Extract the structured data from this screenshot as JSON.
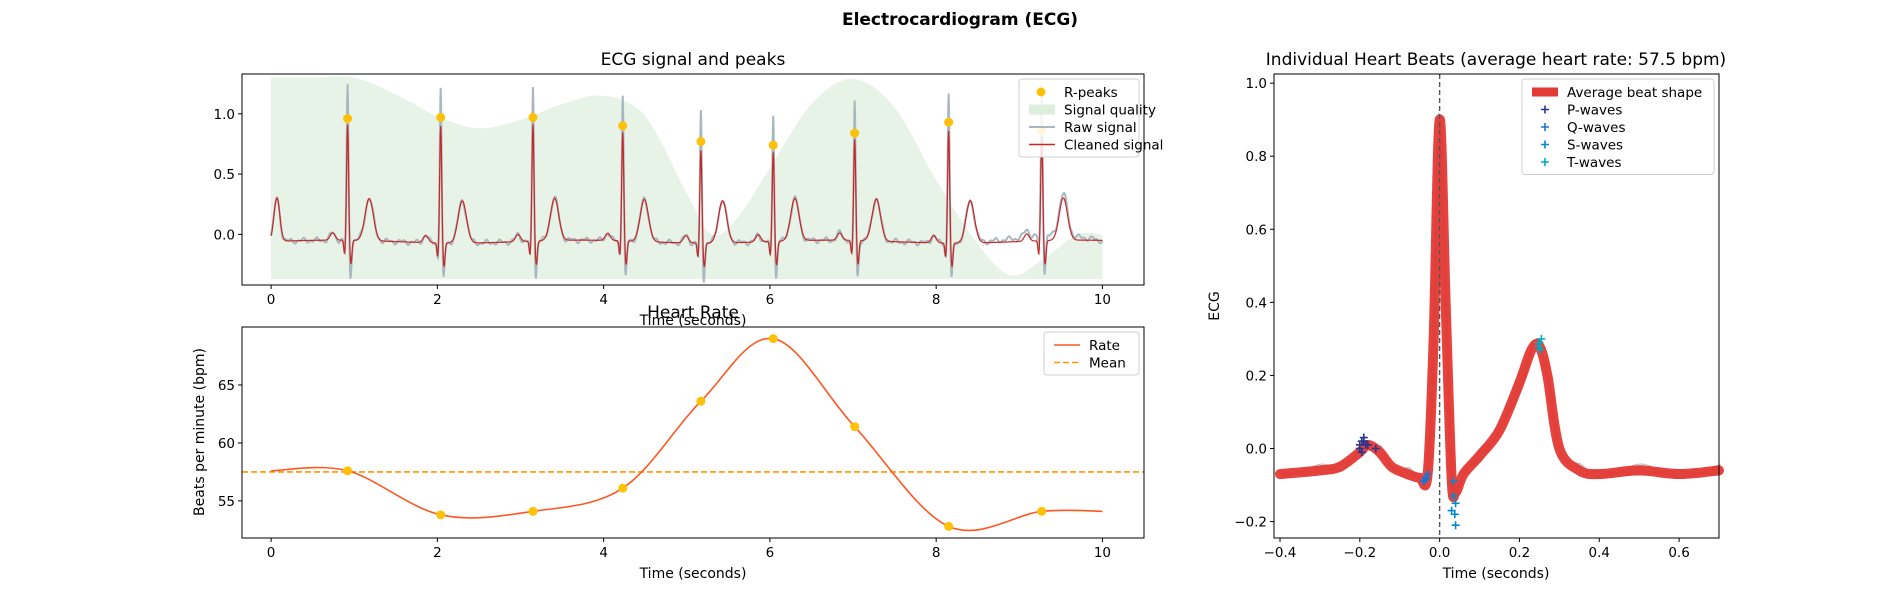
{
  "figure": {
    "title": "Electrocardiogram (ECG)",
    "colors": {
      "raw": "#a9b7c0",
      "cleaned": "#c62828",
      "peaks": "#ffc107",
      "quality": "#ddeedd",
      "rate": "#ff5722",
      "mean": "#ff9800",
      "avg_beat": "#e53935",
      "individual": "#9e9e9e",
      "p_waves": "#283593",
      "q_waves": "#1976d2",
      "s_waves": "#0288d1",
      "t_waves": "#00acc1"
    }
  },
  "chart_data": [
    {
      "id": "ecg_signal",
      "type": "line",
      "title": "ECG signal and peaks",
      "xlabel": "Time (seconds)",
      "ylabel": "",
      "xlim": [
        -0.35,
        10.5
      ],
      "ylim": [
        -0.42,
        1.33
      ],
      "xticks": [
        0,
        2,
        4,
        6,
        8,
        10
      ],
      "xtick_labels": [
        "0",
        "2",
        "4",
        "6",
        "8",
        "10"
      ],
      "yticks": [
        0.0,
        0.5,
        1.0
      ],
      "ytick_labels": [
        "0.0",
        "0.5",
        "1.0"
      ],
      "legend_position": "top-right",
      "legend": [
        "R-peaks",
        "Signal quality",
        "Raw signal",
        "Cleaned signal"
      ],
      "r_peaks": {
        "name": "R-peaks",
        "x": [
          0.92,
          2.04,
          3.15,
          4.23,
          5.17,
          6.04,
          7.02,
          8.15,
          9.27
        ],
        "y": [
          0.96,
          0.97,
          0.97,
          0.9,
          0.77,
          0.74,
          0.84,
          0.93,
          0.86
        ]
      },
      "signal_quality": {
        "name": "Signal quality",
        "x": [
          0,
          0.5,
          1.0,
          1.5,
          2.0,
          2.5,
          3.0,
          3.5,
          4.0,
          4.5,
          5.0,
          5.3,
          5.6,
          6.0,
          6.5,
          7.0,
          7.5,
          8.0,
          8.5,
          8.9,
          9.3,
          9.7,
          10.0
        ],
        "y": [
          1.3,
          1.3,
          1.3,
          1.16,
          0.98,
          0.88,
          0.95,
          1.08,
          1.15,
          0.98,
          0.34,
          0.0,
          0.13,
          0.55,
          1.08,
          1.29,
          1.05,
          0.45,
          -0.08,
          -0.34,
          -0.2,
          0.0,
          0.0
        ]
      },
      "raw_signal": {
        "name": "Raw signal",
        "duration": 10,
        "heart_rate_bpm": 57.5
      },
      "cleaned_signal": {
        "name": "Cleaned signal",
        "duration": 10,
        "heart_rate_bpm": 57.5
      }
    },
    {
      "id": "heart_rate",
      "type": "line",
      "title": "Heart Rate",
      "xlabel": "Time (seconds)",
      "ylabel": "Beats per minute (bpm)",
      "xlim": [
        -0.35,
        10.5
      ],
      "ylim": [
        51.8,
        70.0
      ],
      "xticks": [
        0,
        2,
        4,
        6,
        8,
        10
      ],
      "xtick_labels": [
        "0",
        "2",
        "4",
        "6",
        "8",
        "10"
      ],
      "yticks": [
        55,
        60,
        65
      ],
      "ytick_labels": [
        "55",
        "60",
        "65"
      ],
      "legend_position": "top-right",
      "legend": [
        "Rate",
        "Mean"
      ],
      "series": [
        {
          "name": "Rate",
          "x": [
            0,
            0.92,
            2.04,
            3.15,
            4.23,
            5.17,
            6.04,
            7.02,
            8.15,
            9.27,
            10.0
          ],
          "y": [
            57.6,
            57.6,
            53.8,
            54.1,
            56.1,
            63.6,
            69.0,
            61.4,
            52.8,
            54.1,
            54.1
          ]
        }
      ],
      "peak_markers": {
        "x": [
          0.92,
          2.04,
          3.15,
          4.23,
          5.17,
          6.04,
          7.02,
          8.15,
          9.27
        ],
        "y": [
          57.6,
          53.8,
          54.1,
          56.1,
          63.6,
          69.0,
          61.4,
          52.8,
          54.1
        ]
      },
      "mean": {
        "name": "Mean",
        "value": 57.5
      }
    },
    {
      "id": "heart_beats",
      "type": "line",
      "title": "Individual Heart Beats (average heart rate: 57.5 bpm)",
      "xlabel": "Time (seconds)",
      "ylabel": "ECG",
      "xlim": [
        -0.415,
        0.7
      ],
      "ylim": [
        -0.245,
        1.025
      ],
      "xticks": [
        -0.4,
        -0.2,
        0.0,
        0.2,
        0.4,
        0.6
      ],
      "xtick_labels": [
        "−0.4",
        "−0.2",
        "0.0",
        "0.2",
        "0.4",
        "0.6"
      ],
      "yticks": [
        -0.2,
        0.0,
        0.2,
        0.4,
        0.6,
        0.8,
        1.0
      ],
      "ytick_labels": [
        "−0.2",
        "0.0",
        "0.2",
        "0.4",
        "0.6",
        "0.8",
        "1.0"
      ],
      "legend_position": "top-right",
      "legend": [
        "Average beat shape",
        "P-waves",
        "Q-waves",
        "S-waves",
        "T-waves"
      ],
      "average_beat": {
        "name": "Average beat shape",
        "x": [
          -0.4,
          -0.3,
          -0.25,
          -0.2,
          -0.18,
          -0.15,
          -0.12,
          -0.08,
          -0.05,
          -0.03,
          -0.015,
          0.0,
          0.015,
          0.03,
          0.04,
          0.06,
          0.1,
          0.15,
          0.2,
          0.23,
          0.25,
          0.27,
          0.3,
          0.35,
          0.4,
          0.5,
          0.6,
          0.7
        ],
        "y": [
          -0.07,
          -0.06,
          -0.05,
          -0.01,
          0.01,
          -0.01,
          -0.05,
          -0.07,
          -0.08,
          -0.07,
          0.3,
          0.9,
          0.4,
          -0.08,
          -0.12,
          -0.07,
          -0.02,
          0.05,
          0.18,
          0.27,
          0.28,
          0.2,
          0.0,
          -0.06,
          -0.07,
          -0.06,
          -0.07,
          -0.06
        ]
      },
      "markers": {
        "p_waves": {
          "name": "P-waves",
          "x": [
            -0.195,
            -0.19,
            -0.185,
            -0.2,
            -0.195,
            -0.18,
            -0.16,
            -0.19,
            -0.2
          ],
          "y": [
            0.02,
            0.03,
            0.01,
            0.0,
            -0.01,
            0.01,
            0.0,
            0.02,
            0.01
          ]
        },
        "q_waves": {
          "name": "Q-waves",
          "x": [
            -0.035,
            -0.04,
            -0.03,
            -0.035,
            -0.04
          ],
          "y": [
            -0.08,
            -0.09,
            -0.07,
            -0.085,
            -0.09
          ]
        },
        "s_waves": {
          "name": "S-waves",
          "x": [
            0.035,
            0.04,
            0.03,
            0.04,
            0.035,
            0.038
          ],
          "y": [
            -0.13,
            -0.15,
            -0.17,
            -0.21,
            -0.09,
            -0.18
          ]
        },
        "t_waves": {
          "name": "T-waves",
          "x": [
            0.25,
            0.255,
            0.248,
            0.252
          ],
          "y": [
            0.29,
            0.3,
            0.28,
            0.27
          ]
        }
      }
    }
  ]
}
